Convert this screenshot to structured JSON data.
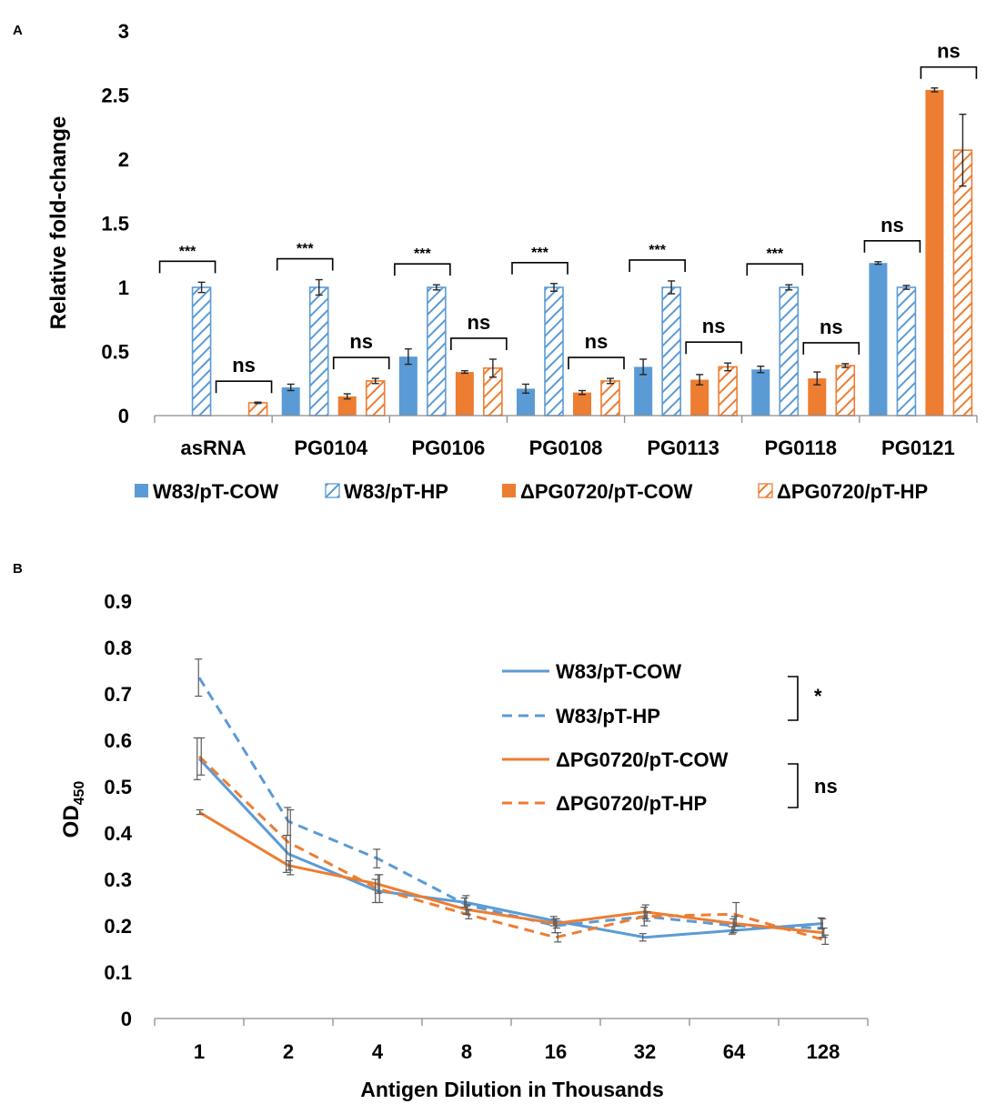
{
  "colors": {
    "blue": "#5b9bd5",
    "orange": "#ed7d31",
    "axis": "#8c8c8c",
    "error": "#262626"
  },
  "chart_data": [
    {
      "panel": "A",
      "type": "bar",
      "ylabel": "Relative fold-change",
      "xlabel": "",
      "ylim": [
        0,
        3
      ],
      "yticks": [
        "0",
        "0.5",
        "1",
        "1.5",
        "2",
        "2.5",
        "3"
      ],
      "categories": [
        "asRNA",
        "PG0104",
        "PG0106",
        "PG0108",
        "PG0113",
        "PG0118",
        "PG0121"
      ],
      "series": [
        {
          "name": "W83/pT-COW",
          "color": "#5b9bd5",
          "pattern": "solid",
          "values": [
            0,
            0.22,
            0.46,
            0.21,
            0.38,
            0.36,
            1.19
          ],
          "errors": [
            0,
            0.025,
            0.06,
            0.035,
            0.06,
            0.025,
            0.01
          ]
        },
        {
          "name": "W83/pT-HP",
          "color": "#5b9bd5",
          "pattern": "hatched",
          "values": [
            1.0,
            1.0,
            1.0,
            1.0,
            1.0,
            1.0,
            1.0
          ],
          "errors": [
            0.04,
            0.06,
            0.02,
            0.03,
            0.05,
            0.02,
            0.015
          ]
        },
        {
          "name": "ΔPG0720/pT-COW",
          "color": "#ed7d31",
          "pattern": "solid",
          "values": [
            0,
            0.15,
            0.34,
            0.18,
            0.28,
            0.29,
            2.54
          ],
          "errors": [
            0,
            0.02,
            0.01,
            0.015,
            0.04,
            0.05,
            0.015
          ]
        },
        {
          "name": "ΔPG0720/pT-HP",
          "color": "#ed7d31",
          "pattern": "hatched",
          "values": [
            0.1,
            0.27,
            0.37,
            0.27,
            0.38,
            0.39,
            2.07
          ],
          "errors": [
            0.005,
            0.02,
            0.07,
            0.02,
            0.03,
            0.015,
            0.28
          ]
        }
      ],
      "annotations": [
        {
          "category": "asRNA",
          "pair": [
            0,
            1
          ],
          "label": "***"
        },
        {
          "category": "asRNA",
          "pair": [
            2,
            3
          ],
          "label": "ns"
        },
        {
          "category": "PG0104",
          "pair": [
            0,
            1
          ],
          "label": "***"
        },
        {
          "category": "PG0104",
          "pair": [
            2,
            3
          ],
          "label": "ns"
        },
        {
          "category": "PG0106",
          "pair": [
            0,
            1
          ],
          "label": "***"
        },
        {
          "category": "PG0106",
          "pair": [
            2,
            3
          ],
          "label": "ns"
        },
        {
          "category": "PG0108",
          "pair": [
            0,
            1
          ],
          "label": "***"
        },
        {
          "category": "PG0108",
          "pair": [
            2,
            3
          ],
          "label": "ns"
        },
        {
          "category": "PG0113",
          "pair": [
            0,
            1
          ],
          "label": "***"
        },
        {
          "category": "PG0113",
          "pair": [
            2,
            3
          ],
          "label": "ns"
        },
        {
          "category": "PG0118",
          "pair": [
            0,
            1
          ],
          "label": "***"
        },
        {
          "category": "PG0118",
          "pair": [
            2,
            3
          ],
          "label": "ns"
        },
        {
          "category": "PG0121",
          "pair": [
            0,
            1
          ],
          "label": "ns"
        },
        {
          "category": "PG0121",
          "pair": [
            2,
            3
          ],
          "label": "ns"
        }
      ],
      "legend": [
        "W83/pT-COW",
        "W83/pT-HP",
        "ΔPG0720/pT-COW",
        "ΔPG0720/pT-HP"
      ],
      "legend_position": "bottom"
    },
    {
      "panel": "B",
      "type": "line",
      "ylabel_main": "OD",
      "ylabel_sub": "450",
      "xlabel": "Antigen Dilution in Thousands",
      "ylim": [
        0,
        0.9
      ],
      "yticks": [
        "0",
        "0.1",
        "0.2",
        "0.3",
        "0.4",
        "0.5",
        "0.6",
        "0.7",
        "0.8",
        "0.9"
      ],
      "categories": [
        "1",
        "2",
        "4",
        "8",
        "16",
        "32",
        "64",
        "128"
      ],
      "series": [
        {
          "name": "W83/pT-COW",
          "color": "#5b9bd5",
          "dash": "solid",
          "values": [
            0.56,
            0.355,
            0.275,
            0.25,
            0.21,
            0.175,
            0.19,
            0.205
          ],
          "errors": [
            0.045,
            0.04,
            0.025,
            0.01,
            0.01,
            0.008,
            0.008,
            0.012
          ]
        },
        {
          "name": "W83/pT-HP",
          "color": "#5b9bd5",
          "dash": "dashed",
          "values": [
            0.735,
            0.425,
            0.345,
            0.245,
            0.2,
            0.22,
            0.2,
            0.195
          ],
          "errors": [
            0.04,
            0.03,
            0.02,
            0.02,
            0.015,
            0.02,
            0.015,
            0.02
          ]
        },
        {
          "name": "ΔPG0720/pT-COW",
          "color": "#ed7d31",
          "dash": "solid",
          "values": [
            0.445,
            0.33,
            0.29,
            0.235,
            0.205,
            0.23,
            0.205,
            0.185
          ],
          "errors": [
            0.005,
            0.01,
            0.02,
            0.01,
            0.01,
            0.015,
            0.015,
            0.01
          ]
        },
        {
          "name": "ΔPG0720/pT-HP",
          "color": "#ed7d31",
          "dash": "dashed",
          "values": [
            0.565,
            0.38,
            0.28,
            0.225,
            0.175,
            0.22,
            0.225,
            0.17
          ],
          "errors": [
            0.04,
            0.07,
            0.03,
            0.01,
            0.01,
            0.01,
            0.025,
            0.01
          ]
        }
      ],
      "legend": [
        "W83/pT-COW",
        "W83/pT-HP",
        "ΔPG0720/pT-COW",
        "ΔPG0720/pT-HP"
      ],
      "legend_position": "center-right",
      "bracket_labels": [
        "*",
        "ns"
      ]
    }
  ],
  "panel_labels": {
    "a": "A",
    "b": "B"
  }
}
